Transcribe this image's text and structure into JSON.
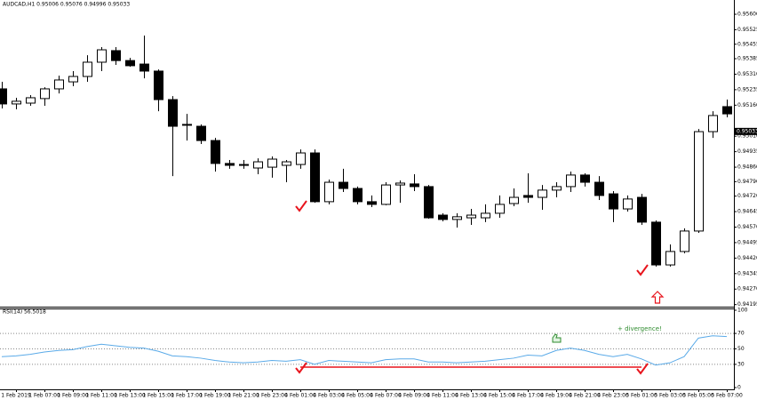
{
  "chart_data": [
    {
      "type": "candlestick",
      "title": "AUDCAD,H1 0.95006 0.95076 0.94996 0.95033",
      "categories": [
        null,
        "1 Feb 2019",
        null,
        "1 Feb 07:00",
        null,
        "1 Feb 09:00",
        null,
        "1 Feb 11:00",
        null,
        "1 Feb 13:00",
        null,
        "1 Feb 15:00",
        null,
        "1 Feb 17:00",
        null,
        "1 Feb 19:00",
        null,
        "1 Feb 21:00",
        null,
        "1 Feb 23:00",
        null,
        "4 Feb 01:00",
        null,
        "4 Feb 03:00",
        null,
        "4 Feb 05:00",
        null,
        "4 Feb 07:00",
        null,
        "4 Feb 09:00",
        null,
        "4 Feb 11:00",
        null,
        "4 Feb 13:00",
        null,
        "4 Feb 15:00",
        null,
        "4 Feb 17:00",
        null,
        "4 Feb 19:00",
        null,
        "4 Feb 21:00",
        null,
        "4 Feb 23:00",
        null,
        "5 Feb 01:00",
        null,
        "5 Feb 03:00",
        null,
        "5 Feb 05:00",
        null,
        "5 Feb 07:00"
      ],
      "open": [
        0.95239,
        0.95166,
        0.9517,
        0.95192,
        0.95239,
        0.95273,
        0.95299,
        0.95368,
        0.95424,
        0.95376,
        0.95359,
        0.95325,
        0.95187,
        0.95067,
        0.95058,
        0.94989,
        0.94878,
        0.94873,
        0.94856,
        0.9486,
        0.94869,
        0.94873,
        0.94929,
        0.94693,
        0.94787,
        0.94757,
        0.94693,
        0.9468,
        0.94774,
        0.94779,
        0.94766,
        0.94628,
        0.94607,
        0.94615,
        0.94615,
        0.94637,
        0.94684,
        0.94723,
        0.94714,
        0.94749,
        0.94766,
        0.94822,
        0.94787,
        0.94731,
        0.94658,
        0.94714,
        0.94594,
        0.94387,
        0.94452,
        0.94551,
        0.95032,
        0.95153
      ],
      "high": [
        0.95273,
        0.95196,
        0.95209,
        0.95247,
        0.95303,
        0.95325,
        0.95402,
        0.95441,
        0.95441,
        0.95389,
        0.95497,
        0.95333,
        0.95204,
        0.95118,
        0.95067,
        0.95002,
        0.94895,
        0.94895,
        0.94903,
        0.94912,
        0.94895,
        0.94946,
        0.94946,
        0.948,
        0.94852,
        0.94766,
        0.94723,
        0.94787,
        0.94796,
        0.94826,
        0.94774,
        0.94637,
        0.94637,
        0.94658,
        0.9468,
        0.94723,
        0.94757,
        0.9483,
        0.94774,
        0.94787,
        0.94839,
        0.9483,
        0.94817,
        0.94744,
        0.94723,
        0.94731,
        0.94602,
        0.94486,
        0.94564,
        0.95045,
        0.95131,
        0.95187
      ],
      "low": [
        0.95144,
        0.9514,
        0.95157,
        0.95157,
        0.95217,
        0.95252,
        0.95273,
        0.95325,
        0.95355,
        0.95346,
        0.9529,
        0.95131,
        0.94817,
        0.94989,
        0.94972,
        0.94839,
        0.94852,
        0.94852,
        0.94826,
        0.94809,
        0.94787,
        0.94852,
        0.94688,
        0.9468,
        0.9474,
        0.9468,
        0.94667,
        0.94676,
        0.94688,
        0.94744,
        0.94611,
        0.94598,
        0.94568,
        0.94581,
        0.94594,
        0.94615,
        0.94671,
        0.94688,
        0.94654,
        0.94714,
        0.9474,
        0.94766,
        0.94701,
        0.94594,
        0.94645,
        0.94581,
        0.94379,
        0.94379,
        0.94443,
        0.94542,
        0.95002,
        0.95101
      ],
      "close": [
        0.95166,
        0.95179,
        0.95196,
        0.95239,
        0.95282,
        0.95299,
        0.95368,
        0.95428,
        0.95376,
        0.95351,
        0.95325,
        0.95187,
        0.95058,
        0.95063,
        0.94989,
        0.94878,
        0.94869,
        0.94869,
        0.94886,
        0.94899,
        0.94886,
        0.94929,
        0.94693,
        0.94787,
        0.94757,
        0.94693,
        0.9468,
        0.94774,
        0.94783,
        0.94766,
        0.94615,
        0.94607,
        0.9462,
        0.94628,
        0.94637,
        0.9468,
        0.94714,
        0.94714,
        0.94749,
        0.94766,
        0.94822,
        0.94787,
        0.94723,
        0.94658,
        0.94706,
        0.94594,
        0.94387,
        0.94452,
        0.94551,
        0.95032,
        0.9511,
        0.95118
      ],
      "up_color": "#ffffff",
      "down_color": "#000000",
      "ylim": [
        0.94185,
        0.95669
      ],
      "yticks": [
        {
          "value": 0.956,
          "label": "0.95600"
        },
        0.95525,
        0.95455,
        0.95385,
        {
          "value": 0.9531,
          "label": "0.95310"
        },
        0.95235,
        {
          "value": 0.9516,
          "label": "0.95160"
        },
        {
          "value": 0.9501,
          "label": "0.95010"
        },
        0.94935,
        {
          "value": 0.9486,
          "label": "0.94860"
        },
        {
          "value": 0.9479,
          "label": "0.94790"
        },
        {
          "value": 0.9472,
          "label": "0.94720"
        },
        0.94645,
        {
          "value": 0.9457,
          "label": "0.94570"
        },
        0.94495,
        {
          "value": 0.9442,
          "label": "0.94420"
        },
        0.94345,
        {
          "value": 0.9427,
          "label": "0.94270"
        },
        0.94195
      ],
      "last_price": 0.95033
    },
    {
      "type": "line",
      "title": "RSI(14) 56.5018",
      "values": [
        40,
        41,
        43,
        46,
        48,
        49,
        53,
        56,
        54,
        52,
        51,
        47,
        41,
        40,
        38,
        35,
        33,
        32,
        33,
        35,
        34,
        36,
        30,
        35,
        34,
        33,
        32,
        36,
        37,
        37,
        33,
        33,
        32,
        33,
        34,
        36,
        38,
        42,
        41,
        48,
        51,
        48,
        43,
        40,
        43,
        37,
        29,
        32,
        40,
        64,
        67,
        66
      ],
      "color": "#5aaae8",
      "ylim": [
        0,
        100
      ],
      "yticks": [
        0,
        30,
        50,
        70,
        100
      ],
      "annotation": "+ divergence!"
    }
  ]
}
